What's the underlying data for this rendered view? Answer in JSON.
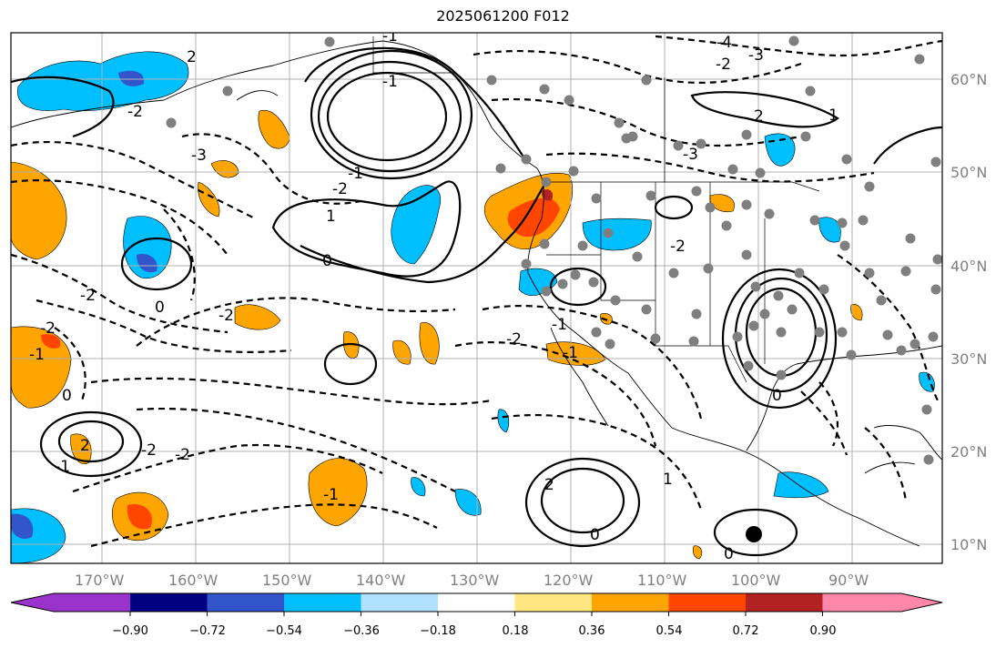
{
  "title": "2025061200 F012",
  "map": {
    "lon_labels": [
      "170°W",
      "160°W",
      "150°W",
      "140°W",
      "130°W",
      "120°W",
      "110°W",
      "100°W",
      "90°W"
    ],
    "lat_labels": [
      "60°N",
      "50°N",
      "40°N",
      "30°N",
      "20°N",
      "10°N"
    ],
    "contour_labels": [
      "-4",
      "-3",
      "-2",
      "-2",
      "-1",
      "0",
      "1",
      "-1",
      "-2",
      "-3",
      "-2",
      "-2",
      "0",
      "-1",
      "-2",
      "-1",
      "0",
      "0",
      "1",
      "2",
      "-1",
      "-2",
      "-1",
      "-2",
      "2",
      "0",
      "1",
      "2",
      "-2",
      "-1",
      "-2",
      "-3",
      "2",
      "0",
      "-1"
    ],
    "colors": {
      "contour": "#000000",
      "gridline": "#b0b0b0",
      "axis_label": "#808080",
      "station_dot": "#7f7f7f"
    },
    "fill_colors": [
      "#9933cc",
      "#000080",
      "#3355cc",
      "#00bfff",
      "#b0e2ff",
      "#ffffff",
      "#ffe680",
      "#ffa500",
      "#ff4500",
      "#b22222",
      "#ff88aa"
    ]
  },
  "colorbar": {
    "tick_labels": [
      "−0.90",
      "−0.72",
      "−0.54",
      "−0.36",
      "−0.18",
      "0.18",
      "0.36",
      "0.54",
      "0.72",
      "0.90"
    ],
    "colors": [
      "#9933cc",
      "#000080",
      "#3355cc",
      "#00bfff",
      "#b0e2ff",
      "#ffffff",
      "#ffe680",
      "#ffa500",
      "#ff4500",
      "#b22222",
      "#ff88aa"
    ]
  }
}
